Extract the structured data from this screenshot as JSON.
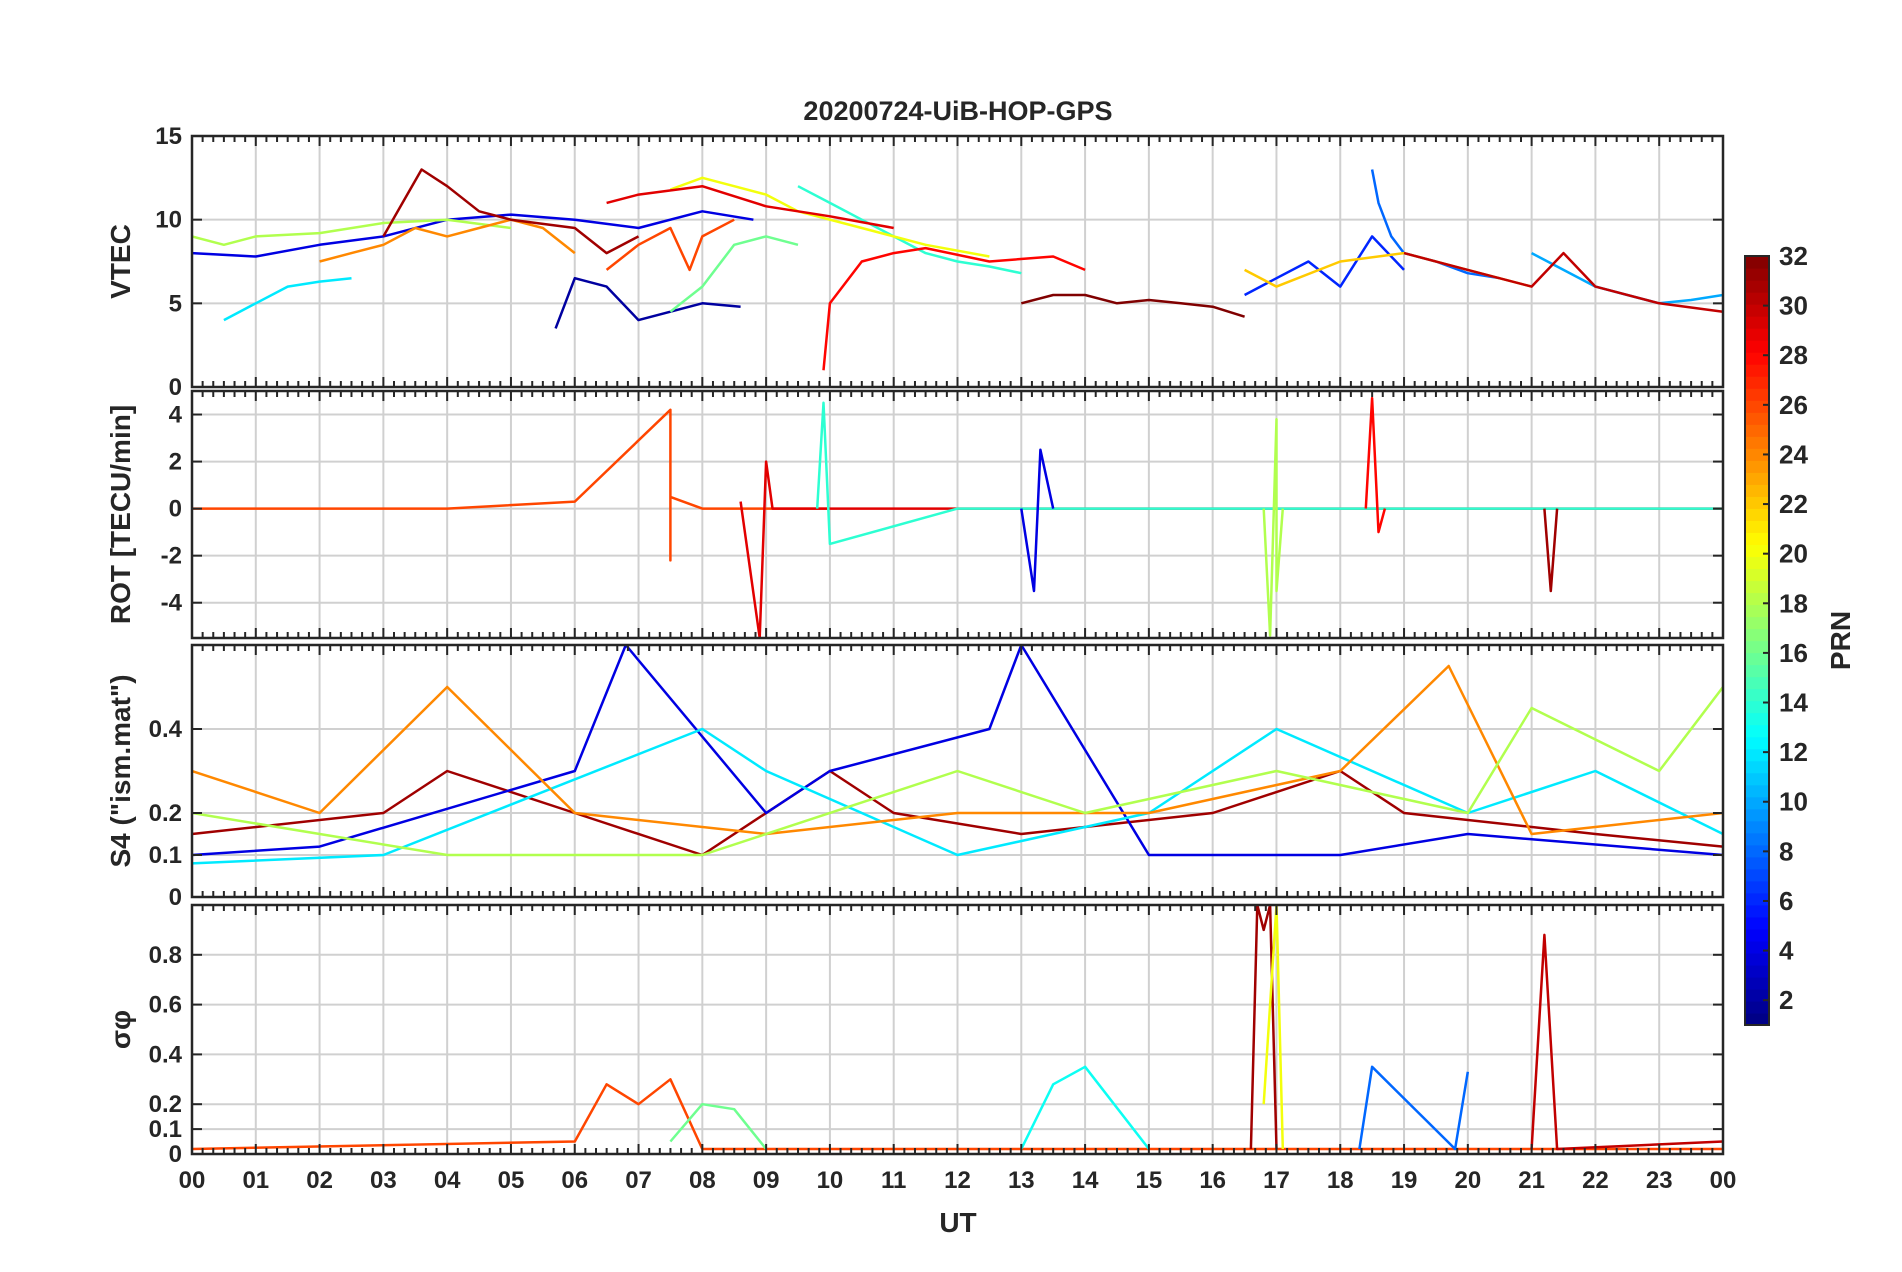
{
  "chart_data": {
    "title": "20200724-UiB-HOP-GPS",
    "xlabel": "UT",
    "x_tick_labels": [
      "00",
      "01",
      "02",
      "03",
      "04",
      "05",
      "06",
      "07",
      "08",
      "09",
      "10",
      "11",
      "12",
      "13",
      "14",
      "15",
      "16",
      "17",
      "18",
      "19",
      "20",
      "21",
      "22",
      "23",
      "00"
    ],
    "x_range_hours": [
      0,
      24
    ],
    "grid": true,
    "colormap": "jet",
    "panels": [
      {
        "id": "vtec",
        "type": "line",
        "ylabel": "VTEC",
        "ylim": [
          0,
          15
        ],
        "yticks": [
          0,
          5,
          10,
          15
        ],
        "ytick_labels": [
          "0",
          "5",
          "10",
          "15"
        ],
        "series": [
          {
            "prn": 2,
            "x": [
              5.7,
              6.0,
              6.5,
              7.0,
              7.5,
              8.0,
              8.6
            ],
            "y": [
              3.5,
              6.5,
              6.0,
              4.0,
              4.5,
              5.0,
              4.8
            ]
          },
          {
            "prn": 4,
            "x": [
              0,
              1,
              2,
              3,
              4,
              5,
              6,
              7,
              8,
              8.8
            ],
            "y": [
              8.0,
              7.8,
              8.5,
              9.0,
              10.0,
              10.3,
              10.0,
              9.5,
              10.5,
              10.0
            ]
          },
          {
            "prn": 6,
            "x": [
              16.5,
              17.0,
              17.5,
              18.0,
              18.5,
              19.0
            ],
            "y": [
              5.5,
              6.5,
              7.5,
              6.0,
              9.0,
              7.0
            ]
          },
          {
            "prn": 8,
            "x": [
              18.5,
              18.6,
              18.8,
              19.0,
              19.5,
              20.0,
              20.5
            ],
            "y": [
              13.0,
              11.0,
              9.0,
              8.0,
              7.5,
              6.8,
              6.5
            ]
          },
          {
            "prn": 10,
            "x": [
              21,
              21.5,
              22,
              22.5,
              23,
              23.5,
              24
            ],
            "y": [
              8.0,
              7.0,
              6.0,
              5.5,
              5.0,
              5.2,
              5.5
            ]
          },
          {
            "prn": 12,
            "x": [
              0.5,
              1.0,
              1.5,
              2.0,
              2.5
            ],
            "y": [
              4.0,
              5.0,
              6.0,
              6.3,
              6.5
            ]
          },
          {
            "prn": 14,
            "x": [
              9.5,
              10.0,
              10.5,
              11.0,
              11.5,
              12.0,
              12.5,
              13.0
            ],
            "y": [
              12.0,
              11.0,
              10.0,
              9.0,
              8.0,
              7.5,
              7.2,
              6.8
            ]
          },
          {
            "prn": 16,
            "x": [
              7.5,
              8.0,
              8.5,
              9.0,
              9.5
            ],
            "y": [
              4.5,
              6.0,
              8.5,
              9.0,
              8.5
            ]
          },
          {
            "prn": 18,
            "x": [
              0,
              0.5,
              1.0,
              2.0,
              3.0,
              4.0,
              5.0
            ],
            "y": [
              9.0,
              8.5,
              9.0,
              9.2,
              9.8,
              10.0,
              9.5
            ]
          },
          {
            "prn": 20,
            "x": [
              7.5,
              8.0,
              8.5,
              9.0,
              9.5,
              10.5,
              11.5,
              12.5
            ],
            "y": [
              11.8,
              12.5,
              12.0,
              11.5,
              10.5,
              9.5,
              8.5,
              7.8
            ]
          },
          {
            "prn": 22,
            "x": [
              16.5,
              17.0,
              18.0,
              19.0,
              20.0,
              21.0
            ],
            "y": [
              7.0,
              6.0,
              7.5,
              8.0,
              7.0,
              6.0
            ]
          },
          {
            "prn": 24,
            "x": [
              2,
              2.5,
              3,
              3.5,
              4,
              4.5,
              5,
              5.5,
              6
            ],
            "y": [
              7.5,
              8.0,
              8.5,
              9.5,
              9.0,
              9.5,
              10.0,
              9.5,
              8.0
            ]
          },
          {
            "prn": 26,
            "x": [
              6.5,
              7.0,
              7.5,
              7.8,
              8.0,
              8.5
            ],
            "y": [
              7.0,
              8.5,
              9.5,
              7.0,
              9.0,
              10.0
            ]
          },
          {
            "prn": 28,
            "x": [
              9.9,
              10.0,
              10.5,
              11.0,
              11.5,
              12.5,
              13.5,
              14.0
            ],
            "y": [
              1.0,
              5.0,
              7.5,
              8.0,
              8.3,
              7.5,
              7.8,
              7.0
            ]
          },
          {
            "prn": 29,
            "x": [
              6.5,
              7.0,
              8.0,
              9.0,
              10.0,
              11.0
            ],
            "y": [
              11.0,
              11.5,
              12.0,
              10.8,
              10.2,
              9.5
            ]
          },
          {
            "prn": 30,
            "x": [
              19.0,
              20.0,
              21.0,
              21.5,
              22.0,
              23.0,
              24.0
            ],
            "y": [
              8.0,
              7.0,
              6.0,
              8.0,
              6.0,
              5.0,
              4.5
            ]
          },
          {
            "prn": 31,
            "x": [
              3,
              3.3,
              3.6,
              4.0,
              4.5,
              5.0,
              6.0,
              6.5,
              7.0
            ],
            "y": [
              9.0,
              11.0,
              13.0,
              12.0,
              10.5,
              10.0,
              9.5,
              8.0,
              9.0
            ]
          },
          {
            "prn": 32,
            "x": [
              13.0,
              13.5,
              14.0,
              14.5,
              15.0,
              15.5,
              16.0,
              16.5
            ],
            "y": [
              5.0,
              5.5,
              5.5,
              5.0,
              5.2,
              5.0,
              4.8,
              4.2
            ]
          }
        ]
      },
      {
        "id": "rot",
        "type": "line",
        "ylabel": "ROT [TECU/min]",
        "ylim": [
          -5.5,
          5
        ],
        "yticks": [
          -4,
          -2,
          0,
          2,
          4
        ],
        "ytick_labels": [
          "-4",
          "-2",
          "0",
          "2",
          "4"
        ],
        "series": [
          {
            "prn": 26,
            "x": [
              0,
              4,
              6,
              7.5,
              7.5,
              7.5,
              8,
              10
            ],
            "y": [
              0,
              0,
              0.3,
              4.2,
              -2.2,
              0.5,
              0,
              0
            ]
          },
          {
            "prn": 29,
            "x": [
              8.6,
              8.9,
              9.0,
              9.1,
              10,
              24
            ],
            "y": [
              0.3,
              -5.5,
              2.0,
              0,
              0,
              0
            ]
          },
          {
            "prn": 14,
            "x": [
              9.8,
              9.9,
              10.0,
              12,
              24
            ],
            "y": [
              0,
              4.5,
              -1.5,
              0,
              0
            ]
          },
          {
            "prn": 18,
            "x": [
              16.8,
              16.9,
              17.0,
              17.0,
              17.1
            ],
            "y": [
              0,
              -5.4,
              3.8,
              -3.5,
              0
            ]
          },
          {
            "prn": 28,
            "x": [
              18.4,
              18.5,
              18.6,
              18.7
            ],
            "y": [
              0,
              4.7,
              -1.0,
              0
            ]
          },
          {
            "prn": 31,
            "x": [
              21.2,
              21.3,
              21.4
            ],
            "y": [
              0,
              -3.5,
              0
            ]
          },
          {
            "prn": 4,
            "x": [
              13.0,
              13.2,
              13.3,
              13.5
            ],
            "y": [
              0,
              -3.5,
              2.5,
              0
            ]
          }
        ]
      },
      {
        "id": "s4",
        "type": "line",
        "ylabel": "S4 (\"ism.mat\")",
        "ylim": [
          0,
          0.6
        ],
        "yticks": [
          0,
          0.1,
          0.2,
          0.4
        ],
        "ytick_labels": [
          "0",
          "0.1",
          "0.2",
          "0.4"
        ],
        "series": [
          {
            "prn": 31,
            "x": [
              0,
              3,
              4,
              6,
              8,
              10,
              11,
              13,
              16,
              18,
              19,
              22,
              24
            ],
            "y": [
              0.15,
              0.2,
              0.3,
              0.2,
              0.1,
              0.3,
              0.2,
              0.15,
              0.2,
              0.3,
              0.2,
              0.15,
              0.12
            ]
          },
          {
            "prn": 4,
            "x": [
              0,
              2,
              6,
              6.8,
              9,
              10,
              12.5,
              13,
              15,
              18,
              20,
              24
            ],
            "y": [
              0.1,
              0.12,
              0.3,
              0.6,
              0.2,
              0.3,
              0.4,
              0.6,
              0.1,
              0.1,
              0.15,
              0.1
            ]
          },
          {
            "prn": 12,
            "x": [
              0,
              3,
              8,
              9,
              12,
              15,
              17,
              20,
              22,
              24
            ],
            "y": [
              0.08,
              0.1,
              0.4,
              0.3,
              0.1,
              0.2,
              0.4,
              0.2,
              0.3,
              0.15
            ]
          },
          {
            "prn": 24,
            "x": [
              0,
              2,
              4,
              6,
              9,
              12,
              15,
              18,
              19.7,
              21,
              24
            ],
            "y": [
              0.3,
              0.2,
              0.5,
              0.2,
              0.15,
              0.2,
              0.2,
              0.3,
              0.55,
              0.15,
              0.2
            ]
          },
          {
            "prn": 18,
            "x": [
              0,
              4,
              8,
              12,
              14,
              17,
              20,
              21,
              23,
              24
            ],
            "y": [
              0.2,
              0.1,
              0.1,
              0.3,
              0.2,
              0.3,
              0.2,
              0.45,
              0.3,
              0.5
            ]
          }
        ]
      },
      {
        "id": "sigma_phi",
        "type": "line",
        "ylabel": "σφ",
        "ylim": [
          0,
          1.0
        ],
        "yticks": [
          0,
          0.1,
          0.2,
          0.4,
          0.6,
          0.8
        ],
        "ytick_labels": [
          "0",
          "0.1",
          "0.2",
          "0.4",
          "0.6",
          "0.8"
        ],
        "series": [
          {
            "prn": 26,
            "x": [
              0,
              6,
              6.5,
              7.0,
              7.5,
              8,
              24
            ],
            "y": [
              0.02,
              0.05,
              0.28,
              0.2,
              0.3,
              0.02,
              0.02
            ]
          },
          {
            "prn": 16,
            "x": [
              7.5,
              8.0,
              8.5,
              9
            ],
            "y": [
              0.05,
              0.2,
              0.18,
              0.02
            ]
          },
          {
            "prn": 31,
            "x": [
              16.6,
              16.7,
              16.8,
              16.9,
              17.0
            ],
            "y": [
              0.02,
              1.0,
              0.9,
              1.0,
              0.02
            ]
          },
          {
            "prn": 20,
            "x": [
              16.8,
              17.0,
              17.1
            ],
            "y": [
              0.2,
              1.0,
              0.02
            ]
          },
          {
            "prn": 13,
            "x": [
              13.0,
              13.5,
              14.0,
              15.0
            ],
            "y": [
              0.02,
              0.28,
              0.35,
              0.02
            ]
          },
          {
            "prn": 8,
            "x": [
              18.3,
              18.5,
              19.8,
              20.0
            ],
            "y": [
              0.02,
              0.35,
              0.02,
              0.33
            ]
          },
          {
            "prn": 30,
            "x": [
              21.0,
              21.2,
              21.4,
              24
            ],
            "y": [
              0.02,
              0.88,
              0.02,
              0.05
            ]
          }
        ]
      }
    ],
    "colorbar": {
      "label": "PRN",
      "range": [
        1,
        32
      ],
      "tick_values": [
        2,
        4,
        6,
        8,
        10,
        12,
        14,
        16,
        18,
        20,
        22,
        24,
        26,
        28,
        30,
        32
      ],
      "tick_labels": [
        "2",
        "4",
        "6",
        "8",
        "10",
        "12",
        "14",
        "16",
        "18",
        "20",
        "22",
        "24",
        "26",
        "28",
        "30",
        "32"
      ],
      "placement": "right"
    }
  }
}
